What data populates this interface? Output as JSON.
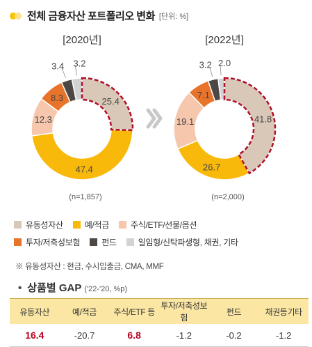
{
  "title": "전체 금융자산 포트폴리오 변화",
  "unit": "[단위: %]",
  "colors": {
    "유동성자산": "#d9c8b7",
    "예/적금": "#f9b90b",
    "주식/ETF/선물/옵션": "#f6c7ac",
    "투자/저축성보험": "#e8742c",
    "펀드": "#4d4845",
    "일임형/신탁파생형, 채권, 기타": "#d3d3d3"
  },
  "chart_data": [
    {
      "type": "pie",
      "title": "[2020년]",
      "total_label": "(n=1,857)",
      "labels": [
        "유동성자산",
        "예/적금",
        "주식/ETF/선물/옵션",
        "투자/저축성보험",
        "펀드",
        "일임형/신탁파생형, 채권, 기타"
      ],
      "values": [
        25.4,
        47.4,
        12.3,
        8.3,
        3.4,
        3.2
      ],
      "highlight": "유동성자산"
    },
    {
      "type": "pie",
      "title": "[2022년]",
      "total_label": "(n=2,000)",
      "labels": [
        "유동성자산",
        "예/적금",
        "주식/ETF/선물/옵션",
        "투자/저축성보험",
        "펀드",
        "일임형/신탁파생형, 채권, 기타"
      ],
      "values": [
        41.8,
        26.7,
        19.1,
        7.1,
        3.2,
        2.0
      ],
      "highlight": "유동성자산"
    }
  ],
  "legend": [
    "유동성자산",
    "예/적금",
    "주식/ETF/선물/옵션",
    "투자/저축성보험",
    "펀드",
    "일임형/신탁파생형, 채권, 기타"
  ],
  "note": "※ 유동성자산 : 현금, 수시입출금, CMA, MMF",
  "gap": {
    "title": "상품별 GAP",
    "subtitle": "('22-'20, %p)",
    "headers": [
      "유동자산",
      "예/적금",
      "주식/ETF 등",
      "투자/저축성보험",
      "펀드",
      "채권등기타"
    ],
    "values": [
      "16.4",
      "-20.7",
      "6.8",
      "-1.2",
      "-0.2",
      "-1.2"
    ]
  }
}
